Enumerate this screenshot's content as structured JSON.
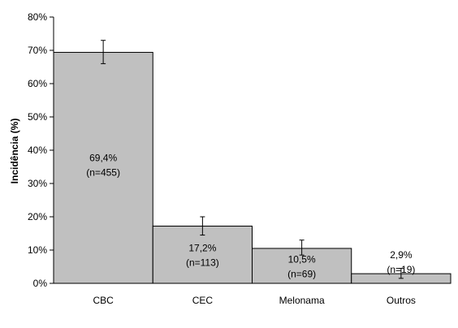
{
  "chart_data": {
    "type": "bar",
    "title": "",
    "xlabel": "",
    "ylabel": "Incidência (%)",
    "ylim": [
      0,
      80
    ],
    "yticks": [
      "0%",
      "10%",
      "20%",
      "30%",
      "40%",
      "50%",
      "60%",
      "70%",
      "80%"
    ],
    "grid": false,
    "categories": [
      "CBC",
      "CEC",
      "Melonama",
      "Outros"
    ],
    "values": [
      69.4,
      17.2,
      10.5,
      2.9
    ],
    "error_bars": [
      {
        "low": 66.0,
        "high": 73.0
      },
      {
        "low": 14.5,
        "high": 20.0
      },
      {
        "low": 8.5,
        "high": 13.0
      },
      {
        "low": 1.5,
        "high": 4.5
      }
    ],
    "labels": [
      {
        "pct": "69,4%",
        "n": "(n=455)"
      },
      {
        "pct": "17,2%",
        "n": "(n=113)"
      },
      {
        "pct": "10,5%",
        "n": "(n=69)"
      },
      {
        "pct": "2,9%",
        "n": "(n=19)"
      }
    ],
    "bar_color": "#c0c0c0",
    "edge_color": "#000000"
  }
}
